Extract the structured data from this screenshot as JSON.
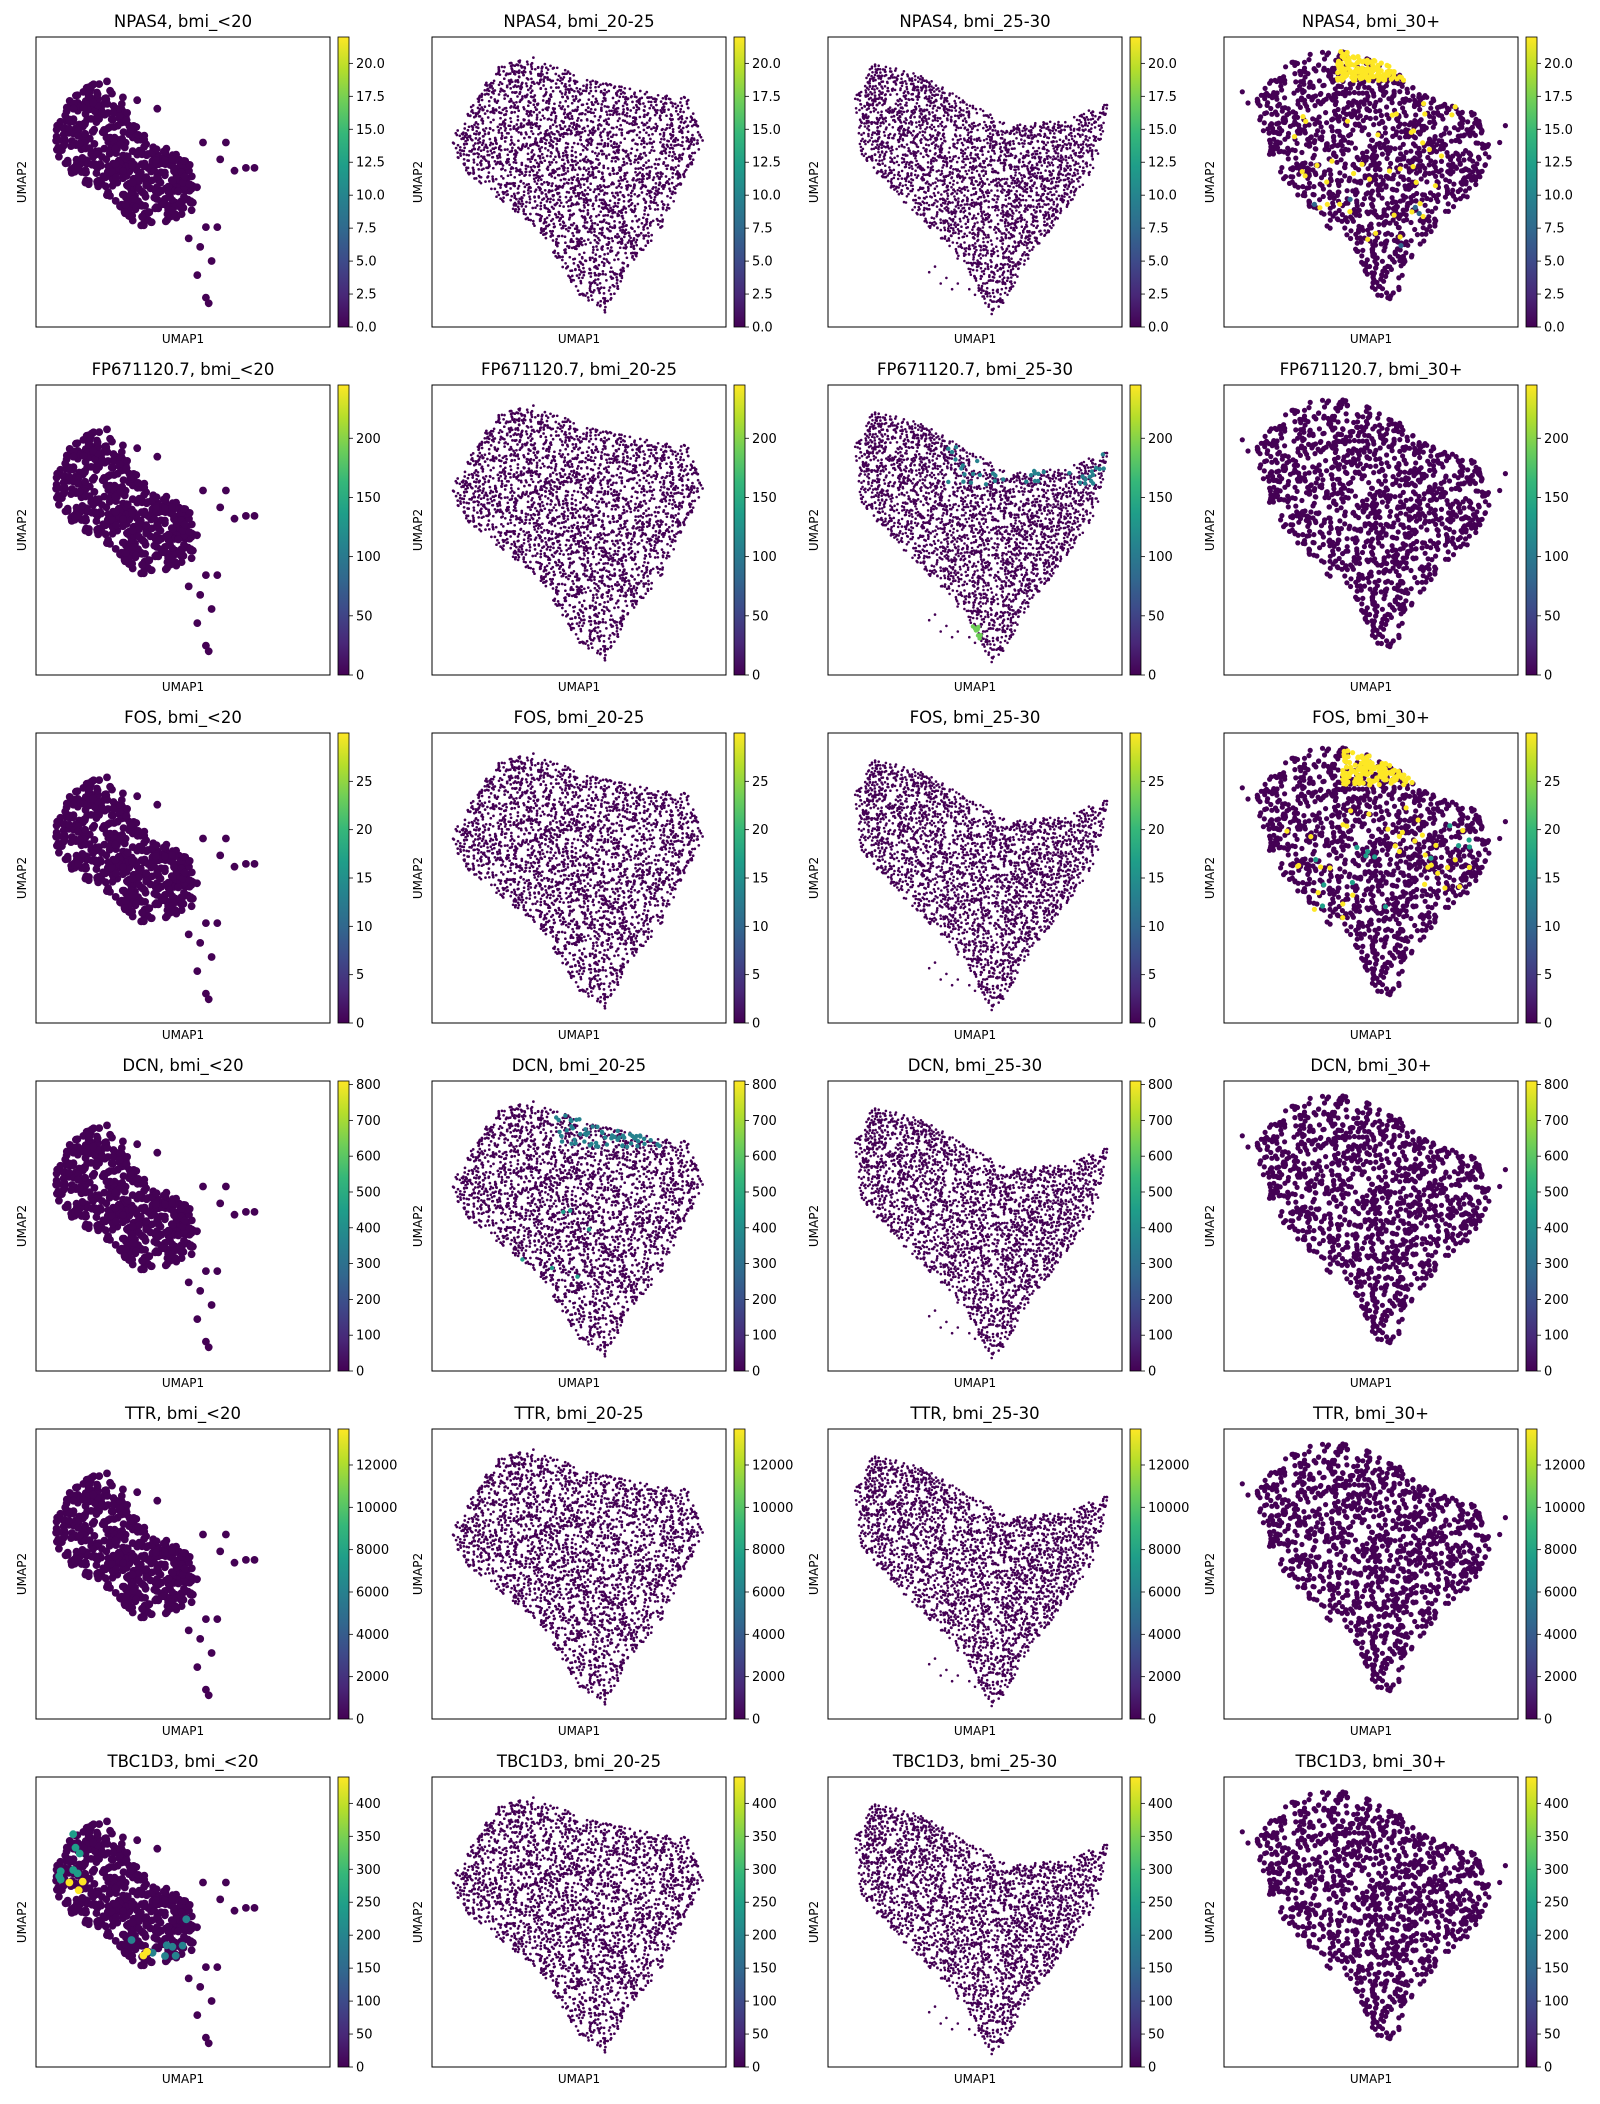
{
  "figure": {
    "xlabel": "UMAP1",
    "ylabel": "UMAP2",
    "colormap": "viridis",
    "colormap_stops": [
      "#440154",
      "#482878",
      "#3e4989",
      "#31688e",
      "#26828e",
      "#1f9e89",
      "#35b779",
      "#6ece58",
      "#b5de2b",
      "#fde725"
    ],
    "groups": [
      "bmi_<20",
      "bmi_20-25",
      "bmi_25-30",
      "bmi_30+"
    ]
  },
  "chart_data": [
    {
      "type": "scatter",
      "gene": "NPAS4",
      "group": "bmi_<20",
      "title": "NPAS4, bmi_<20",
      "xlabel": "UMAP1",
      "ylabel": "UMAP2",
      "color_range": [
        0,
        22
      ],
      "colorbar_ticks": [
        "0.0",
        "2.5",
        "5.0",
        "7.5",
        "10.0",
        "12.5",
        "15.0",
        "17.5",
        "20.0"
      ],
      "colorbar_tick_values": [
        0,
        2.5,
        5,
        7.5,
        10,
        12.5,
        15,
        17.5,
        20
      ]
    },
    {
      "type": "scatter",
      "gene": "NPAS4",
      "group": "bmi_20-25",
      "title": "NPAS4, bmi_20-25",
      "xlabel": "UMAP1",
      "ylabel": "UMAP2",
      "color_range": [
        0,
        22
      ],
      "colorbar_ticks": [
        "0.0",
        "2.5",
        "5.0",
        "7.5",
        "10.0",
        "12.5",
        "15.0",
        "17.5",
        "20.0"
      ],
      "colorbar_tick_values": [
        0,
        2.5,
        5,
        7.5,
        10,
        12.5,
        15,
        17.5,
        20
      ]
    },
    {
      "type": "scatter",
      "gene": "NPAS4",
      "group": "bmi_25-30",
      "title": "NPAS4, bmi_25-30",
      "xlabel": "UMAP1",
      "ylabel": "UMAP2",
      "color_range": [
        0,
        22
      ],
      "colorbar_ticks": [
        "0.0",
        "2.5",
        "5.0",
        "7.5",
        "10.0",
        "12.5",
        "15.0",
        "17.5",
        "20.0"
      ],
      "colorbar_tick_values": [
        0,
        2.5,
        5,
        7.5,
        10,
        12.5,
        15,
        17.5,
        20
      ]
    },
    {
      "type": "scatter",
      "gene": "NPAS4",
      "group": "bmi_30+",
      "title": "NPAS4, bmi_30+",
      "xlabel": "UMAP1",
      "ylabel": "UMAP2",
      "color_range": [
        0,
        22
      ],
      "colorbar_ticks": [
        "0.0",
        "2.5",
        "5.0",
        "7.5",
        "10.0",
        "12.5",
        "15.0",
        "17.5",
        "20.0"
      ],
      "colorbar_tick_values": [
        0,
        2.5,
        5,
        7.5,
        10,
        12.5,
        15,
        17.5,
        20
      ]
    },
    {
      "type": "scatter",
      "gene": "FP671120.7",
      "group": "bmi_<20",
      "title": "FP671120.7, bmi_<20",
      "xlabel": "UMAP1",
      "ylabel": "UMAP2",
      "color_range": [
        0,
        245
      ],
      "colorbar_ticks": [
        "0",
        "50",
        "100",
        "150",
        "200"
      ],
      "colorbar_tick_values": [
        0,
        50,
        100,
        150,
        200
      ]
    },
    {
      "type": "scatter",
      "gene": "FP671120.7",
      "group": "bmi_20-25",
      "title": "FP671120.7, bmi_20-25",
      "xlabel": "UMAP1",
      "ylabel": "UMAP2",
      "color_range": [
        0,
        245
      ],
      "colorbar_ticks": [
        "0",
        "50",
        "100",
        "150",
        "200"
      ],
      "colorbar_tick_values": [
        0,
        50,
        100,
        150,
        200
      ]
    },
    {
      "type": "scatter",
      "gene": "FP671120.7",
      "group": "bmi_25-30",
      "title": "FP671120.7, bmi_25-30",
      "xlabel": "UMAP1",
      "ylabel": "UMAP2",
      "color_range": [
        0,
        245
      ],
      "colorbar_ticks": [
        "0",
        "50",
        "100",
        "150",
        "200"
      ],
      "colorbar_tick_values": [
        0,
        50,
        100,
        150,
        200
      ]
    },
    {
      "type": "scatter",
      "gene": "FP671120.7",
      "group": "bmi_30+",
      "title": "FP671120.7, bmi_30+",
      "xlabel": "UMAP1",
      "ylabel": "UMAP2",
      "color_range": [
        0,
        245
      ],
      "colorbar_ticks": [
        "0",
        "50",
        "100",
        "150",
        "200"
      ],
      "colorbar_tick_values": [
        0,
        50,
        100,
        150,
        200
      ]
    },
    {
      "type": "scatter",
      "gene": "FOS",
      "group": "bmi_<20",
      "title": "FOS, bmi_<20",
      "xlabel": "UMAP1",
      "ylabel": "UMAP2",
      "color_range": [
        0,
        30
      ],
      "colorbar_ticks": [
        "0",
        "5",
        "10",
        "15",
        "20",
        "25"
      ],
      "colorbar_tick_values": [
        0,
        5,
        10,
        15,
        20,
        25
      ]
    },
    {
      "type": "scatter",
      "gene": "FOS",
      "group": "bmi_20-25",
      "title": "FOS, bmi_20-25",
      "xlabel": "UMAP1",
      "ylabel": "UMAP2",
      "color_range": [
        0,
        30
      ],
      "colorbar_ticks": [
        "0",
        "5",
        "10",
        "15",
        "20",
        "25"
      ],
      "colorbar_tick_values": [
        0,
        5,
        10,
        15,
        20,
        25
      ]
    },
    {
      "type": "scatter",
      "gene": "FOS",
      "group": "bmi_25-30",
      "title": "FOS, bmi_25-30",
      "xlabel": "UMAP1",
      "ylabel": "UMAP2",
      "color_range": [
        0,
        30
      ],
      "colorbar_ticks": [
        "0",
        "5",
        "10",
        "15",
        "20",
        "25"
      ],
      "colorbar_tick_values": [
        0,
        5,
        10,
        15,
        20,
        25
      ]
    },
    {
      "type": "scatter",
      "gene": "FOS",
      "group": "bmi_30+",
      "title": "FOS, bmi_30+",
      "xlabel": "UMAP1",
      "ylabel": "UMAP2",
      "color_range": [
        0,
        30
      ],
      "colorbar_ticks": [
        "0",
        "5",
        "10",
        "15",
        "20",
        "25"
      ],
      "colorbar_tick_values": [
        0,
        5,
        10,
        15,
        20,
        25
      ]
    },
    {
      "type": "scatter",
      "gene": "DCN",
      "group": "bmi_<20",
      "title": "DCN, bmi_<20",
      "xlabel": "UMAP1",
      "ylabel": "UMAP2",
      "color_range": [
        0,
        810
      ],
      "colorbar_ticks": [
        "0",
        "100",
        "200",
        "300",
        "400",
        "500",
        "600",
        "700",
        "800"
      ],
      "colorbar_tick_values": [
        0,
        100,
        200,
        300,
        400,
        500,
        600,
        700,
        800
      ]
    },
    {
      "type": "scatter",
      "gene": "DCN",
      "group": "bmi_20-25",
      "title": "DCN, bmi_20-25",
      "xlabel": "UMAP1",
      "ylabel": "UMAP2",
      "color_range": [
        0,
        810
      ],
      "colorbar_ticks": [
        "0",
        "100",
        "200",
        "300",
        "400",
        "500",
        "600",
        "700",
        "800"
      ],
      "colorbar_tick_values": [
        0,
        100,
        200,
        300,
        400,
        500,
        600,
        700,
        800
      ]
    },
    {
      "type": "scatter",
      "gene": "DCN",
      "group": "bmi_25-30",
      "title": "DCN, bmi_25-30",
      "xlabel": "UMAP1",
      "ylabel": "UMAP2",
      "color_range": [
        0,
        810
      ],
      "colorbar_ticks": [
        "0",
        "100",
        "200",
        "300",
        "400",
        "500",
        "600",
        "700",
        "800"
      ],
      "colorbar_tick_values": [
        0,
        100,
        200,
        300,
        400,
        500,
        600,
        700,
        800
      ]
    },
    {
      "type": "scatter",
      "gene": "DCN",
      "group": "bmi_30+",
      "title": "DCN, bmi_30+",
      "xlabel": "UMAP1",
      "ylabel": "UMAP2",
      "color_range": [
        0,
        810
      ],
      "colorbar_ticks": [
        "0",
        "100",
        "200",
        "300",
        "400",
        "500",
        "600",
        "700",
        "800"
      ],
      "colorbar_tick_values": [
        0,
        100,
        200,
        300,
        400,
        500,
        600,
        700,
        800
      ]
    },
    {
      "type": "scatter",
      "gene": "TTR",
      "group": "bmi_<20",
      "title": "TTR, bmi_<20",
      "xlabel": "UMAP1",
      "ylabel": "UMAP2",
      "color_range": [
        0,
        13700
      ],
      "colorbar_ticks": [
        "0",
        "2000",
        "4000",
        "6000",
        "8000",
        "10000",
        "12000"
      ],
      "colorbar_tick_values": [
        0,
        2000,
        4000,
        6000,
        8000,
        10000,
        12000
      ]
    },
    {
      "type": "scatter",
      "gene": "TTR",
      "group": "bmi_20-25",
      "title": "TTR, bmi_20-25",
      "xlabel": "UMAP1",
      "ylabel": "UMAP2",
      "color_range": [
        0,
        13700
      ],
      "colorbar_ticks": [
        "0",
        "2000",
        "4000",
        "6000",
        "8000",
        "10000",
        "12000"
      ],
      "colorbar_tick_values": [
        0,
        2000,
        4000,
        6000,
        8000,
        10000,
        12000
      ]
    },
    {
      "type": "scatter",
      "gene": "TTR",
      "group": "bmi_25-30",
      "title": "TTR, bmi_25-30",
      "xlabel": "UMAP1",
      "ylabel": "UMAP2",
      "color_range": [
        0,
        13700
      ],
      "colorbar_ticks": [
        "0",
        "2000",
        "4000",
        "6000",
        "8000",
        "10000",
        "12000"
      ],
      "colorbar_tick_values": [
        0,
        2000,
        4000,
        6000,
        8000,
        10000,
        12000
      ]
    },
    {
      "type": "scatter",
      "gene": "TTR",
      "group": "bmi_30+",
      "title": "TTR, bmi_30+",
      "xlabel": "UMAP1",
      "ylabel": "UMAP2",
      "color_range": [
        0,
        13700
      ],
      "colorbar_ticks": [
        "0",
        "2000",
        "4000",
        "6000",
        "8000",
        "10000",
        "12000"
      ],
      "colorbar_tick_values": [
        0,
        2000,
        4000,
        6000,
        8000,
        10000,
        12000
      ]
    },
    {
      "type": "scatter",
      "gene": "TBC1D3",
      "group": "bmi_<20",
      "title": "TBC1D3, bmi_<20",
      "xlabel": "UMAP1",
      "ylabel": "UMAP2",
      "color_range": [
        0,
        440
      ],
      "colorbar_ticks": [
        "0",
        "50",
        "100",
        "150",
        "200",
        "250",
        "300",
        "350",
        "400"
      ],
      "colorbar_tick_values": [
        0,
        50,
        100,
        150,
        200,
        250,
        300,
        350,
        400
      ]
    },
    {
      "type": "scatter",
      "gene": "TBC1D3",
      "group": "bmi_20-25",
      "title": "TBC1D3, bmi_20-25",
      "xlabel": "UMAP1",
      "ylabel": "UMAP2",
      "color_range": [
        0,
        440
      ],
      "colorbar_ticks": [
        "0",
        "50",
        "100",
        "150",
        "200",
        "250",
        "300",
        "350",
        "400"
      ],
      "colorbar_tick_values": [
        0,
        50,
        100,
        150,
        200,
        250,
        300,
        350,
        400
      ]
    },
    {
      "type": "scatter",
      "gene": "TBC1D3",
      "group": "bmi_25-30",
      "title": "TBC1D3, bmi_25-30",
      "xlabel": "UMAP1",
      "ylabel": "UMAP2",
      "color_range": [
        0,
        440
      ],
      "colorbar_ticks": [
        "0",
        "50",
        "100",
        "150",
        "200",
        "250",
        "300",
        "350",
        "400"
      ],
      "colorbar_tick_values": [
        0,
        50,
        100,
        150,
        200,
        250,
        300,
        350,
        400
      ]
    },
    {
      "type": "scatter",
      "gene": "TBC1D3",
      "group": "bmi_30+",
      "title": "TBC1D3, bmi_30+",
      "xlabel": "UMAP1",
      "ylabel": "UMAP2",
      "color_range": [
        0,
        440
      ],
      "colorbar_ticks": [
        "0",
        "50",
        "100",
        "150",
        "200",
        "250",
        "300",
        "350",
        "400"
      ],
      "colorbar_tick_values": [
        0,
        50,
        100,
        150,
        200,
        250,
        300,
        350,
        400
      ]
    }
  ]
}
